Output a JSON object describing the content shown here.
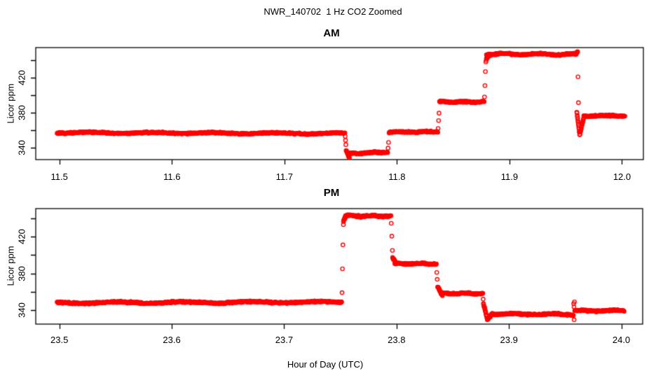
{
  "title": "NWR_140702  1 Hz CO2 Zoomed",
  "xlabel": "Hour of Day (UTC)",
  "colors": {
    "marker": "#FF0000",
    "axis": "#000000",
    "background": "#FFFFFF"
  },
  "marker": "open-circle",
  "chart_data": [
    {
      "type": "scatter",
      "title": "AM",
      "ylabel": "Licor ppm",
      "xlabel": "",
      "xlim": [
        11.479,
        12.019
      ],
      "ylim": [
        326.4,
        454.4
      ],
      "xticks": [
        11.5,
        11.6,
        11.7,
        11.8,
        11.9,
        12.0
      ],
      "yticks": [
        340,
        360,
        380,
        400,
        420,
        440
      ],
      "yticks_labeled": [
        340,
        380,
        420
      ],
      "grid": false,
      "segments": [
        {
          "t0": 11.498,
          "t1": 11.7537,
          "v0": 357.2,
          "v1": 356.2,
          "noise": 1.0,
          "wiggle": 0.6,
          "period": 0.055
        },
        {
          "t0": 11.7548,
          "t1": 11.7578,
          "v0": 337.0,
          "v1": 328.0,
          "noise": 1.2,
          "dt": 0.8
        },
        {
          "t0": 11.756,
          "t1": 11.7918,
          "v0": 333.2,
          "v1": 335.2,
          "noise": 1.3,
          "wiggle": 0.4,
          "period": 0.02
        },
        {
          "t0": 11.793,
          "t1": 11.8363,
          "v0": 357.8,
          "v1": 358.2,
          "noise": 1.0,
          "wiggle": 0.4,
          "period": 0.025
        },
        {
          "t0": 11.8378,
          "t1": 11.8775,
          "v0": 392.3,
          "v1": 392.3,
          "noise": 1.0,
          "wiggle": 0.4,
          "period": 0.02
        },
        {
          "t0": 11.8793,
          "t1": 11.882,
          "v0": 441.0,
          "v1": 446.0,
          "noise": 1.2,
          "dt": 0.8
        },
        {
          "t0": 11.8795,
          "t1": 11.9593,
          "v0": 447.0,
          "v1": 446.6,
          "noise": 1.1,
          "wiggle": 0.7,
          "period": 0.03
        },
        {
          "t0": 11.9588,
          "t1": 11.9606,
          "v0": 448.2,
          "v1": 449.5,
          "noise": 1.0,
          "dt": 0.8
        },
        {
          "t0": 11.9598,
          "t1": 11.9624,
          "v0": 381.0,
          "v1": 355.0,
          "noise": 1.5,
          "dt": 0.7
        },
        {
          "t0": 11.9624,
          "t1": 11.9658,
          "v0": 355.0,
          "v1": 373.0,
          "noise": 1.5,
          "dt": 0.7
        },
        {
          "t0": 11.966,
          "t1": 12.0025,
          "v0": 376.2,
          "v1": 376.6,
          "noise": 1.0,
          "wiggle": 0.4,
          "period": 0.025
        }
      ],
      "transition_points": [
        [
          11.754,
          353.0
        ],
        [
          11.7543,
          348.5
        ],
        [
          11.7546,
          343.5
        ],
        [
          11.7921,
          339.5
        ],
        [
          11.7925,
          346.0
        ],
        [
          11.8366,
          362.0
        ],
        [
          11.837,
          371.0
        ],
        [
          11.8374,
          379.5
        ],
        [
          11.8778,
          398.0
        ],
        [
          11.8782,
          411.0
        ],
        [
          11.8786,
          427.0
        ],
        [
          11.879,
          438.0
        ],
        [
          11.9609,
          421.0
        ],
        [
          11.9613,
          391.5
        ]
      ]
    },
    {
      "type": "scatter",
      "title": "PM",
      "ylabel": "Licor ppm",
      "xlabel": "Hour of Day (UTC)",
      "xlim": [
        23.479,
        24.019
      ],
      "ylim": [
        324.8,
        450.5
      ],
      "xticks": [
        23.5,
        23.6,
        23.7,
        23.8,
        23.9,
        24.0
      ],
      "yticks": [
        340,
        360,
        380,
        400,
        420,
        440
      ],
      "yticks_labeled": [
        340,
        380,
        420
      ],
      "grid": false,
      "segments": [
        {
          "t0": 23.498,
          "t1": 23.7512,
          "v0": 348.0,
          "v1": 348.8,
          "noise": 1.1,
          "wiggle": 0.7,
          "period": 0.06
        },
        {
          "t0": 23.7528,
          "t1": 23.7548,
          "v0": 437.0,
          "v1": 442.0,
          "noise": 1.2,
          "dt": 0.8
        },
        {
          "t0": 23.7545,
          "t1": 23.795,
          "v0": 442.6,
          "v1": 442.4,
          "noise": 1.2,
          "wiggle": 0.5,
          "period": 0.02
        },
        {
          "t0": 23.7965,
          "t1": 23.799,
          "v0": 397.0,
          "v1": 392.0,
          "noise": 1.2,
          "dt": 0.8
        },
        {
          "t0": 23.7985,
          "t1": 23.8355,
          "v0": 390.6,
          "v1": 390.4,
          "noise": 1.0,
          "wiggle": 0.4,
          "period": 0.02
        },
        {
          "t0": 23.8366,
          "t1": 23.8408,
          "v0": 366.0,
          "v1": 355.5,
          "noise": 1.3,
          "dt": 0.8
        },
        {
          "t0": 23.8405,
          "t1": 23.8768,
          "v0": 358.3,
          "v1": 358.0,
          "noise": 1.0,
          "wiggle": 0.4,
          "period": 0.02
        },
        {
          "t0": 23.8773,
          "t1": 23.8808,
          "v0": 347.0,
          "v1": 330.0,
          "noise": 1.5,
          "dt": 0.7
        },
        {
          "t0": 23.8808,
          "t1": 23.8845,
          "v0": 330.0,
          "v1": 335.5,
          "noise": 1.5,
          "dt": 0.7
        },
        {
          "t0": 23.884,
          "t1": 23.9573,
          "v0": 336.0,
          "v1": 335.3,
          "noise": 1.1,
          "wiggle": 0.5,
          "period": 0.035
        },
        {
          "t0": 23.9585,
          "t1": 24.0025,
          "v0": 339.2,
          "v1": 339.6,
          "noise": 1.0,
          "wiggle": 0.4,
          "period": 0.03
        }
      ],
      "transition_points": [
        [
          23.7515,
          359.0
        ],
        [
          23.7519,
          385.0
        ],
        [
          23.7523,
          411.0
        ],
        [
          23.7527,
          433.0
        ],
        [
          23.7953,
          434.5
        ],
        [
          23.7958,
          420.5
        ],
        [
          23.7963,
          405.0
        ],
        [
          23.8358,
          381.0
        ],
        [
          23.8362,
          373.5
        ],
        [
          23.8771,
          352.0
        ],
        [
          23.9576,
          347.0
        ],
        [
          23.9579,
          343.5
        ],
        [
          23.958,
          329.5
        ],
        [
          23.9583,
          349.0
        ]
      ]
    }
  ]
}
